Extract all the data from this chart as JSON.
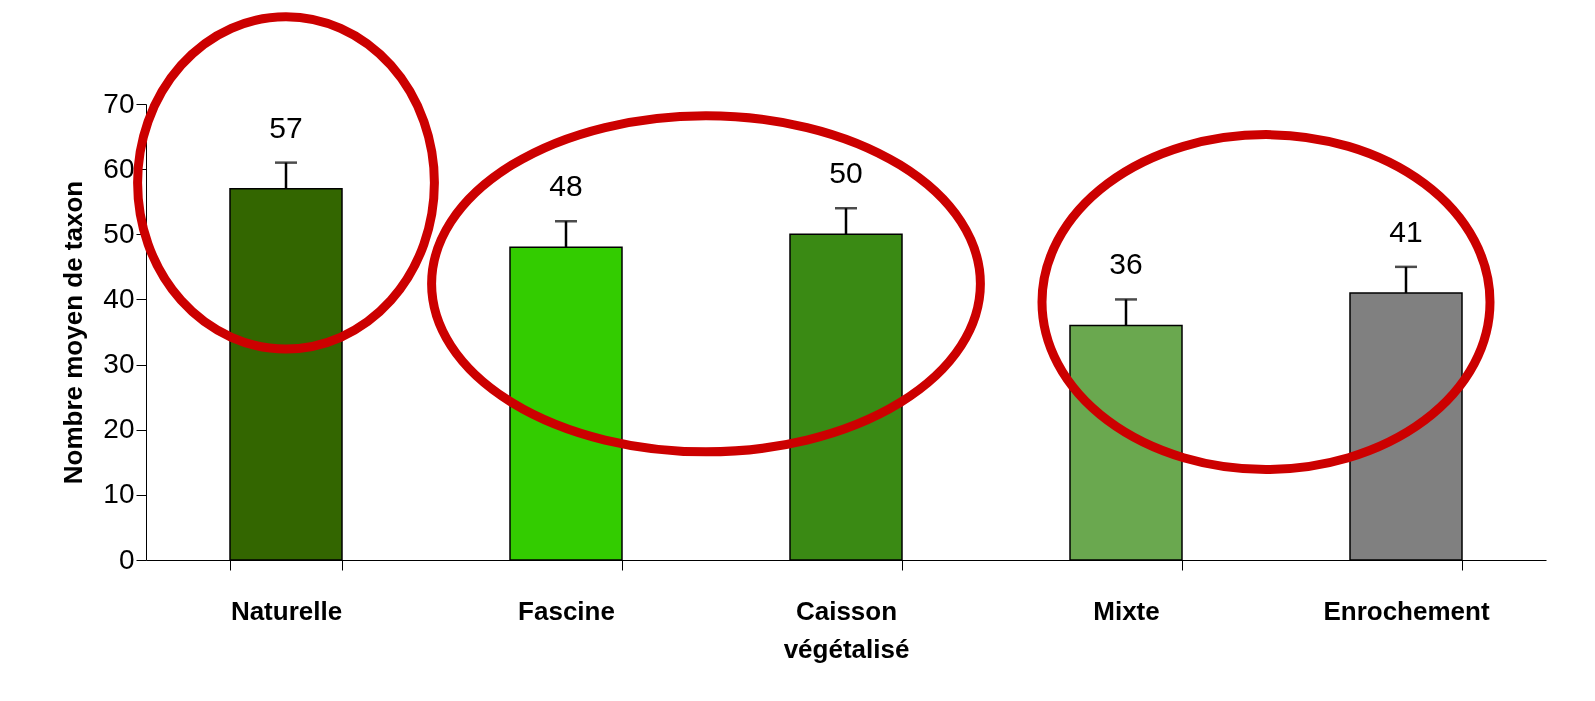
{
  "chart_data": {
    "type": "bar",
    "ylabel": "Nombre moyen de taxon",
    "categories": [
      "Naturelle",
      "Fascine",
      "Caisson végétalisé",
      "Mixte",
      "Enrochement"
    ],
    "values": [
      57,
      48,
      50,
      36,
      41
    ],
    "errors": [
      [
        57,
        61
      ],
      [
        48,
        52
      ],
      [
        50,
        54
      ],
      [
        36,
        40
      ],
      [
        41,
        45
      ]
    ],
    "colors": [
      "#336600",
      "#33cc00",
      "#3a8a14",
      "#6aa84f",
      "#808080"
    ],
    "data_labels": true,
    "ylim": [
      0,
      70
    ],
    "yticks": [
      0,
      10,
      20,
      30,
      40,
      50,
      60,
      70
    ],
    "grid": false,
    "legend": false
  }
}
